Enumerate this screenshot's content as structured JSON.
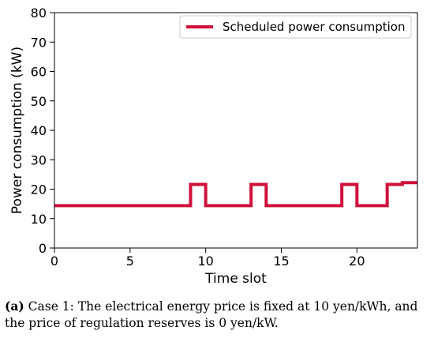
{
  "chart_data": {
    "type": "line",
    "step": "post",
    "xlabel": "Time slot",
    "ylabel": "Power consumption (kW)",
    "xlim": [
      0,
      24
    ],
    "ylim": [
      0,
      80
    ],
    "xticks": [
      0,
      5,
      10,
      15,
      20
    ],
    "yticks": [
      0,
      10,
      20,
      30,
      40,
      50,
      60,
      70,
      80
    ],
    "grid": false,
    "legend_position": "top-right",
    "series": [
      {
        "name": "Scheduled power consumption",
        "color": "#d0103a",
        "x": [
          0,
          1,
          2,
          3,
          4,
          5,
          6,
          7,
          8,
          9,
          10,
          11,
          12,
          13,
          14,
          15,
          16,
          17,
          18,
          19,
          20,
          21,
          22,
          23
        ],
        "values": [
          14.4,
          14.4,
          14.4,
          14.4,
          14.4,
          14.4,
          14.4,
          14.4,
          14.4,
          21.6,
          14.4,
          14.4,
          14.4,
          21.6,
          14.4,
          14.4,
          14.4,
          14.4,
          14.4,
          21.6,
          14.4,
          14.4,
          21.6,
          22.2
        ]
      }
    ]
  },
  "caption": {
    "label": "(a)",
    "text": " Case 1: The electrical energy price is fixed at 10 yen/kWh, and the price of regulation reserves is 0 yen/kW."
  }
}
